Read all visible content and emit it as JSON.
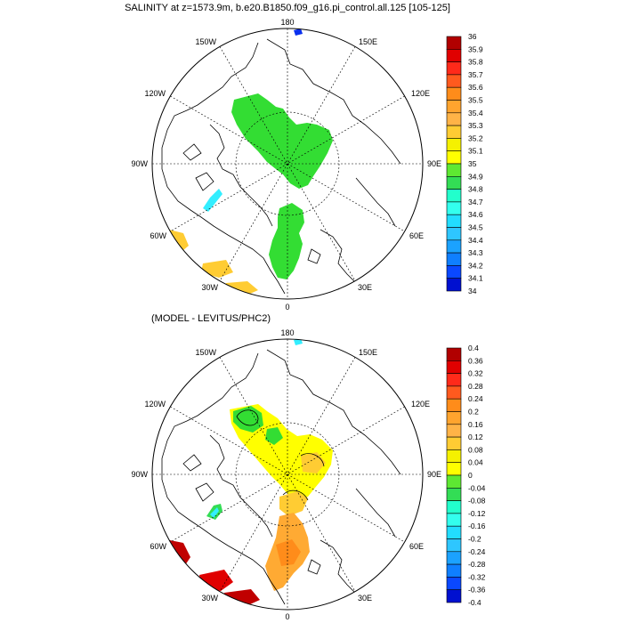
{
  "panels": [
    {
      "id": "top",
      "title": "SALINITY at z=1573.9m, b.e20.B1850.f09_g16.pi_control.all.125 [105-125]",
      "colorbar": {
        "labels": [
          "36",
          "35.9",
          "35.8",
          "35.7",
          "35.6",
          "35.5",
          "35.4",
          "35.3",
          "35.2",
          "35.1",
          "35",
          "34.9",
          "34.8",
          "34.7",
          "34.6",
          "34.5",
          "34.4",
          "34.3",
          "34.2",
          "34.1",
          "34"
        ],
        "colors": [
          "#b10000",
          "#e00000",
          "#ff2a1a",
          "#ff5a1e",
          "#ff8c1a",
          "#ffa42e",
          "#ffb347",
          "#ffcc33",
          "#f5f100",
          "#ffff00",
          "#5ee832",
          "#33dd55",
          "#22ffcc",
          "#33ffee",
          "#22ddff",
          "#2ec6ff",
          "#1ba2ff",
          "#0f7fff",
          "#0a48ff",
          "#0010d0",
          "#6a00cc",
          "#aa00ff",
          "#cc22cc",
          "#cccccc",
          "#777777"
        ]
      }
    },
    {
      "id": "bottom",
      "title": "(MODEL - LEVITUS/PHC2)",
      "colorbar": {
        "labels": [
          "0.4",
          "0.36",
          "0.32",
          "0.28",
          "0.24",
          "0.2",
          "0.16",
          "0.12",
          "0.08",
          "0.04",
          "0",
          "-0.04",
          "-0.08",
          "-0.12",
          "-0.16",
          "-0.2",
          "-0.24",
          "-0.28",
          "-0.32",
          "-0.36",
          "-0.4"
        ],
        "colors": [
          "#b10000",
          "#e00000",
          "#ff2a1a",
          "#ff5a1e",
          "#ff8c1a",
          "#ffa42e",
          "#ffb347",
          "#ffcc33",
          "#f5f100",
          "#ffff00",
          "#5ee832",
          "#33dd55",
          "#22ffcc",
          "#33ffee",
          "#22ddff",
          "#2ec6ff",
          "#1ba2ff",
          "#0f7fff",
          "#0a48ff",
          "#0010d0",
          "#6a00cc",
          "#aa00ff",
          "#cc22cc",
          "#cccccc",
          "#777777"
        ]
      }
    }
  ],
  "map_labels": {
    "top": "180",
    "bottom": "0",
    "left": "90W",
    "right": "90E",
    "upper_left_1": "150W",
    "upper_left_2": "120W",
    "lower_left_1": "60W",
    "lower_left_2": "30W",
    "upper_right_1": "150E",
    "upper_right_2": "120E",
    "lower_right_1": "60E",
    "lower_right_2": "30E"
  },
  "colors": {
    "green": "#33dd33",
    "cyan": "#33eeff",
    "yellow": "#ffff00",
    "orange": "#ffaa33",
    "dark_red": "#c00000",
    "red": "#e00000",
    "gold": "#ffcc33",
    "blue": "#0a30ee"
  }
}
